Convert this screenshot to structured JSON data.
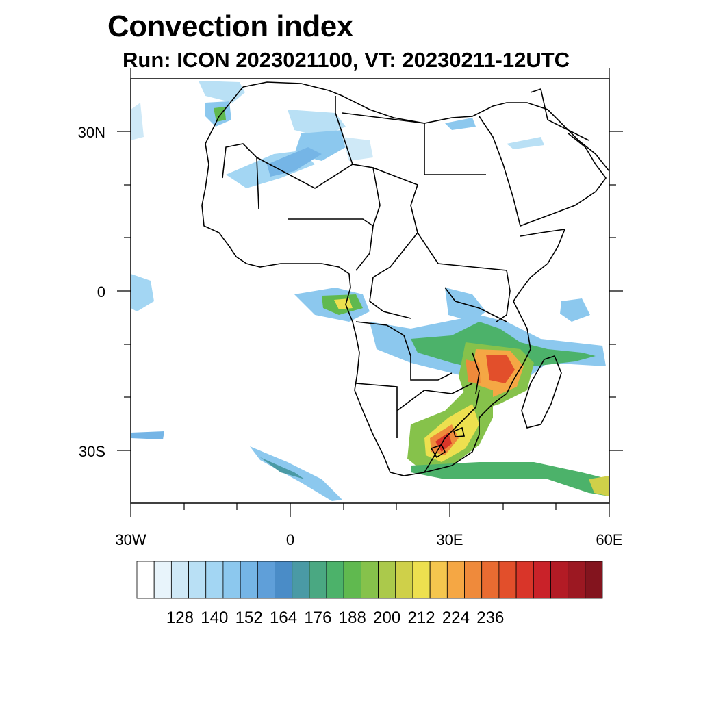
{
  "title": "Convection index",
  "subtitle": "Run: ICON 2023021100,  VT: 20230211-12UTC",
  "lat_labels": [
    "30N",
    "0",
    "30S"
  ],
  "lon_labels": [
    "30W",
    "0",
    "30E",
    "60E"
  ],
  "colorbar": {
    "colors": [
      "#ffffff",
      "#e8f4fb",
      "#cfe9f7",
      "#b9e0f5",
      "#a3d6f3",
      "#8cc8ee",
      "#75b5e6",
      "#5f9fd9",
      "#4a8cc7",
      "#4a9aa5",
      "#4aa882",
      "#4cb26a",
      "#60b94f",
      "#86c24b",
      "#abc94b",
      "#cfd049",
      "#ede04f",
      "#f5c64e",
      "#f5a744",
      "#ef8a3b",
      "#e96b31",
      "#e24f2b",
      "#d93529",
      "#c92229",
      "#b31b25",
      "#9c1822",
      "#83141e"
    ],
    "tick_labels": [
      "128",
      "140",
      "152",
      "164",
      "176",
      "188",
      "200",
      "212",
      "224",
      "236"
    ]
  }
}
